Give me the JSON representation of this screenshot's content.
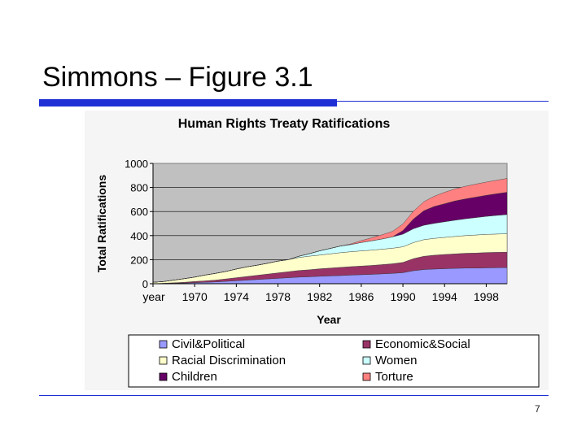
{
  "slide": {
    "title": "Simmons – Figure 3.1",
    "page_number": "7",
    "accent_color": "#1f2fd6"
  },
  "chart_data": {
    "type": "area",
    "stacked": true,
    "title": "Human Rights Treaty Ratifications",
    "xlabel": "Year",
    "ylabel": "Total Ratifications",
    "ylim": [
      0,
      1000
    ],
    "yticks": [
      "0",
      "200",
      "400",
      "600",
      "800",
      "1000"
    ],
    "xticks": [
      "year",
      "1970",
      "1974",
      "1978",
      "1982",
      "1986",
      "1990",
      "1994",
      "1998"
    ],
    "x_range": [
      1966,
      2000
    ],
    "grid": true,
    "legend_position": "bottom",
    "x": [
      1966,
      1967,
      1968,
      1969,
      1970,
      1971,
      1972,
      1973,
      1974,
      1975,
      1976,
      1977,
      1978,
      1979,
      1980,
      1981,
      1982,
      1983,
      1984,
      1985,
      1986,
      1987,
      1988,
      1989,
      1990,
      1991,
      1992,
      1993,
      1994,
      1995,
      1996,
      1997,
      1998,
      1999,
      2000
    ],
    "series": [
      {
        "name": "Civil&Political",
        "color": "#9999ff",
        "values": [
          0,
          2,
          4,
          6,
          9,
          12,
          15,
          20,
          25,
          30,
          35,
          40,
          45,
          50,
          55,
          58,
          62,
          65,
          68,
          72,
          75,
          78,
          82,
          86,
          92,
          108,
          118,
          122,
          125,
          128,
          130,
          130,
          132,
          133,
          134
        ]
      },
      {
        "name": "Economic&Social",
        "color": "#993366",
        "values": [
          0,
          2,
          4,
          6,
          10,
          12,
          15,
          20,
          25,
          30,
          35,
          40,
          45,
          50,
          55,
          58,
          62,
          65,
          68,
          70,
          72,
          74,
          77,
          80,
          85,
          100,
          110,
          115,
          118,
          120,
          123,
          125,
          127,
          128,
          128
        ]
      },
      {
        "name": "Racial Discrimination",
        "color": "#ffffcc",
        "values": [
          12,
          14,
          22,
          30,
          36,
          48,
          56,
          62,
          72,
          80,
          84,
          90,
          98,
          100,
          108,
          113,
          114,
          118,
          122,
          124,
          126,
          127,
          128,
          129,
          130,
          134,
          138,
          140,
          142,
          145,
          147,
          150,
          151,
          152,
          153
        ]
      },
      {
        "name": "Women",
        "color": "#ccffff",
        "values": [
          0,
          0,
          0,
          0,
          0,
          0,
          0,
          0,
          0,
          0,
          0,
          0,
          0,
          0,
          10,
          20,
          35,
          45,
          55,
          60,
          70,
          78,
          85,
          95,
          105,
          115,
          120,
          125,
          130,
          135,
          140,
          145,
          150,
          155,
          160
        ]
      },
      {
        "name": "Children",
        "color": "#660066",
        "values": [
          0,
          0,
          0,
          0,
          0,
          0,
          0,
          0,
          0,
          0,
          0,
          0,
          0,
          0,
          0,
          0,
          0,
          0,
          0,
          0,
          0,
          0,
          0,
          0,
          30,
          80,
          120,
          140,
          150,
          160,
          165,
          170,
          175,
          180,
          185
        ]
      },
      {
        "name": "Torture",
        "color": "#ff8080",
        "values": [
          0,
          0,
          0,
          0,
          0,
          0,
          0,
          0,
          0,
          0,
          0,
          0,
          0,
          0,
          0,
          0,
          0,
          0,
          0,
          5,
          15,
          25,
          35,
          45,
          55,
          65,
          75,
          85,
          95,
          100,
          105,
          108,
          110,
          112,
          115
        ]
      }
    ]
  }
}
